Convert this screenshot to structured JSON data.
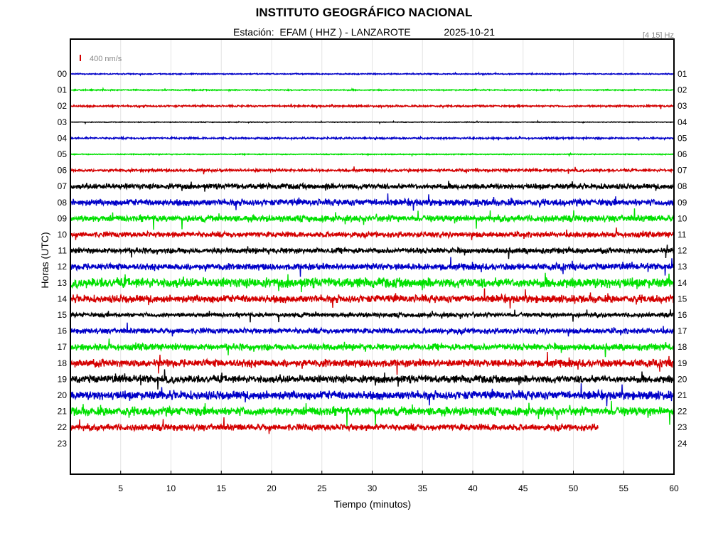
{
  "header": {
    "institution": "INSTITUTO GEOGRÁFICO NACIONAL",
    "station_line": "Estación:  EFAM ( HHZ ) - LANZAROTE            2025-10-21",
    "filter_band": "[4 15] Hz"
  },
  "chart_data": {
    "type": "line",
    "xlabel": "Tiempo (minutos)",
    "ylabel": "Horas (UTC)",
    "xlim": [
      0,
      60
    ],
    "x_ticks": [
      5,
      10,
      15,
      20,
      25,
      30,
      35,
      40,
      45,
      50,
      55,
      60
    ],
    "scale_label": "400 nm/s",
    "grid": true,
    "trace_colors": [
      "#0000c8",
      "#00e000",
      "#d40000",
      "#000000"
    ],
    "left_labels": [
      "00",
      "01",
      "02",
      "03",
      "04",
      "05",
      "06",
      "07",
      "08",
      "09",
      "10",
      "11",
      "12",
      "13",
      "14",
      "15",
      "16",
      "17",
      "18",
      "19",
      "20",
      "21",
      "22",
      "23"
    ],
    "right_labels": [
      "01",
      "02",
      "03",
      "04",
      "05",
      "06",
      "07",
      "08",
      "09",
      "10",
      "11",
      "12",
      "13",
      "14",
      "15",
      "16",
      "17",
      "18",
      "19",
      "20",
      "21",
      "22",
      "23",
      "24"
    ],
    "rows": [
      {
        "hour": "00",
        "color": "blue",
        "amplitude": 0.05,
        "end_minute": 60
      },
      {
        "hour": "01",
        "color": "green",
        "amplitude": 0.05,
        "end_minute": 60
      },
      {
        "hour": "02",
        "color": "red",
        "amplitude": 0.08,
        "end_minute": 60
      },
      {
        "hour": "03",
        "color": "black",
        "amplitude": 0.03,
        "end_minute": 60
      },
      {
        "hour": "04",
        "color": "blue",
        "amplitude": 0.08,
        "end_minute": 60
      },
      {
        "hour": "05",
        "color": "green",
        "amplitude": 0.04,
        "end_minute": 60
      },
      {
        "hour": "06",
        "color": "red",
        "amplitude": 0.12,
        "end_minute": 60
      },
      {
        "hour": "07",
        "color": "black",
        "amplitude": 0.25,
        "end_minute": 60
      },
      {
        "hour": "08",
        "color": "blue",
        "amplitude": 0.3,
        "end_minute": 60
      },
      {
        "hour": "09",
        "color": "green",
        "amplitude": 0.3,
        "end_minute": 60
      },
      {
        "hour": "10",
        "color": "red",
        "amplitude": 0.25,
        "end_minute": 60
      },
      {
        "hour": "11",
        "color": "black",
        "amplitude": 0.25,
        "end_minute": 60
      },
      {
        "hour": "12",
        "color": "blue",
        "amplitude": 0.3,
        "end_minute": 60
      },
      {
        "hour": "13",
        "color": "green",
        "amplitude": 0.45,
        "end_minute": 60
      },
      {
        "hour": "14",
        "color": "red",
        "amplitude": 0.35,
        "end_minute": 60
      },
      {
        "hour": "15",
        "color": "black",
        "amplitude": 0.2,
        "end_minute": 60
      },
      {
        "hour": "16",
        "color": "blue",
        "amplitude": 0.25,
        "end_minute": 60
      },
      {
        "hour": "17",
        "color": "green",
        "amplitude": 0.3,
        "end_minute": 60
      },
      {
        "hour": "18",
        "color": "red",
        "amplitude": 0.35,
        "end_minute": 60
      },
      {
        "hour": "19",
        "color": "black",
        "amplitude": 0.35,
        "end_minute": 60
      },
      {
        "hour": "20",
        "color": "blue",
        "amplitude": 0.4,
        "end_minute": 60
      },
      {
        "hour": "21",
        "color": "green",
        "amplitude": 0.4,
        "end_minute": 60
      },
      {
        "hour": "22",
        "color": "red",
        "amplitude": 0.3,
        "end_minute": 52.5
      },
      {
        "hour": "23",
        "color": "none",
        "amplitude": 0,
        "end_minute": 0
      }
    ]
  }
}
